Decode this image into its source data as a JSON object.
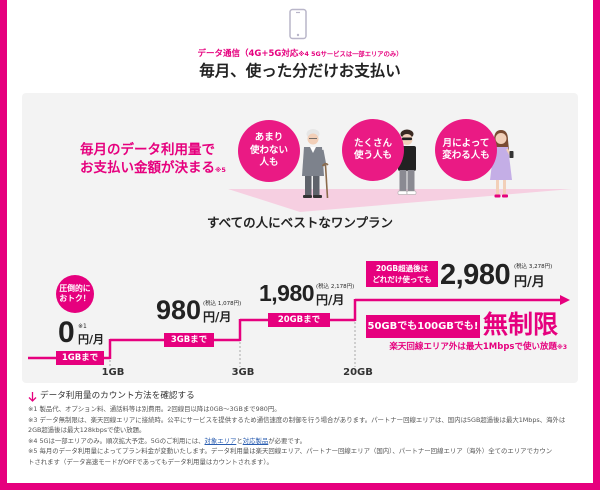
{
  "header": {
    "icon": "smartphone-icon",
    "category_main": "データ通信（4G+5G対応",
    "category_note": "※4 5Gサービスは一部エリアのみ）",
    "title": "毎月、使った分だけお支払い"
  },
  "intro": {
    "line1": "毎月のデータ利用量で",
    "line2": "お支払い金額が決まる",
    "note": "※5"
  },
  "personas": [
    {
      "line1": "あまり",
      "line2": "使わない",
      "line3": "人も",
      "figure": "elderly-man-illustration"
    },
    {
      "line1": "たくさん",
      "line2": "使う人も",
      "figure": "young-man-illustration"
    },
    {
      "line1": "月によって",
      "line2": "変わる人も",
      "figure": "woman-with-phone-illustration"
    }
  ],
  "plan": {
    "title": "すべての人にベストなワンプラン",
    "badge": {
      "line1": "圧倒的に",
      "line2": "おトク！"
    },
    "tiers": [
      {
        "price": "0",
        "note": "※1",
        "unit": "円/月",
        "limit": "1GBまで"
      },
      {
        "price": "980",
        "tax": "(税込 1,078円)",
        "unit": "円/月",
        "limit": "3GBまで"
      },
      {
        "price": "1,980",
        "tax": "(税込 2,178円)",
        "unit": "円/月",
        "limit": "20GBまで"
      },
      {
        "price": "2,980",
        "tax": "(税込 3,278円)",
        "unit": "円/月",
        "condition_line1": "20GB超過後は",
        "condition_line2": "どれだけ使っても"
      }
    ],
    "unlimited": {
      "label": "50GBでも100GBでも!",
      "headline": "無制限",
      "note": "楽天回線エリア外は最大1Mbpsで使い放題",
      "note_mark": "※3"
    },
    "axis_labels": [
      "1GB",
      "3GB",
      "20GB"
    ]
  },
  "link": {
    "icon": "arrow-down-icon",
    "text": "データ利用量のカウント方法を確認する"
  },
  "footnotes": {
    "n1": "※1 製品代、オプション料、通話料等は別費用。2回線目以降は0GB～3GBまで980円。",
    "n3_line1": "※3 データ無制限は、楽天回線エリアに接続時。公平にサービスを提供するため通信速度の制御を行う場合があります。パートナー回線エリアは、国内は5GB超過後は最大1Mbps、海外は",
    "n3_line2": "2GB超過後は最大128kbpsで使い放題。",
    "n4_before": "※4 5Gは一部エリアのみ。順次拡大予定。5Gのご利用には、",
    "n4_link1": "対象エリア",
    "n4_mid": "と",
    "n4_link2": "対応製品",
    "n4_after": "が必要です。",
    "n5_line1": "※5 毎月のデータ利用量によってプラン料金が変動いたします。データ利用量は楽天回線エリア、パートナー回線エリア（国内）、パートナー回線エリア（海外）全てのエリアでカウン",
    "n5_line2": "トされます（データ高速モードがOFFであってもデータ利用量はカウントされます）。"
  },
  "colors": {
    "brand": "#e6007e",
    "persona_circle": "#ea1a84",
    "panel": "#f3f3f3",
    "chevron": "#f6cfe1",
    "text": "#222222",
    "muted": "#555555",
    "link": "#2a5db0"
  }
}
